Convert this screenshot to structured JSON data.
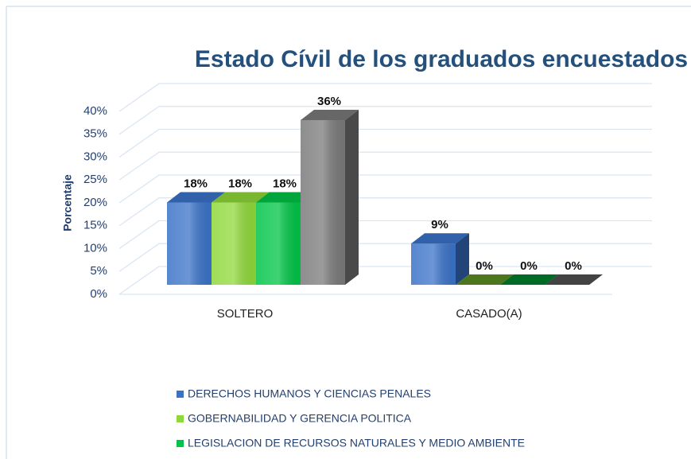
{
  "chart_data": {
    "type": "bar3d",
    "title": "Estado Cívil de los graduados encuestados",
    "y_label": "Porcentaje",
    "categories": [
      "SOLTERO",
      "CASADO(A)"
    ],
    "series": [
      {
        "name": "DERECHOS HUMANOS Y CIENCIAS PENALES",
        "color": "#3a72c8",
        "values": [
          18,
          9
        ],
        "value_labels": [
          "18%",
          "9%"
        ]
      },
      {
        "name": "GOBERNABILIDAD Y GERENCIA POLITICA",
        "color": "#8fd83a",
        "values": [
          18,
          0
        ],
        "value_labels": [
          "18%",
          "0%"
        ]
      },
      {
        "name": "LEGISLACION DE RECURSOS NATURALES Y MEDIO AMBIENTE",
        "color": "#00c447",
        "values": [
          18,
          0
        ],
        "value_labels": [
          "18%",
          "0%"
        ]
      },
      {
        "color": "#7a7a7a",
        "values": [
          36,
          0
        ],
        "value_labels": [
          "36%",
          "0%"
        ]
      }
    ],
    "ylim": [
      0,
      40
    ],
    "yticks": [
      {
        "value": 0,
        "label": "0%"
      },
      {
        "value": 5,
        "label": "5%"
      },
      {
        "value": 10,
        "label": "10%"
      },
      {
        "value": 15,
        "label": "15%"
      },
      {
        "value": 20,
        "label": "20%"
      },
      {
        "value": 25,
        "label": "25%"
      },
      {
        "value": 30,
        "label": "30%"
      },
      {
        "value": 35,
        "label": "35%"
      },
      {
        "value": 40,
        "label": "40%"
      }
    ],
    "grid": true,
    "legend": "bottom"
  }
}
